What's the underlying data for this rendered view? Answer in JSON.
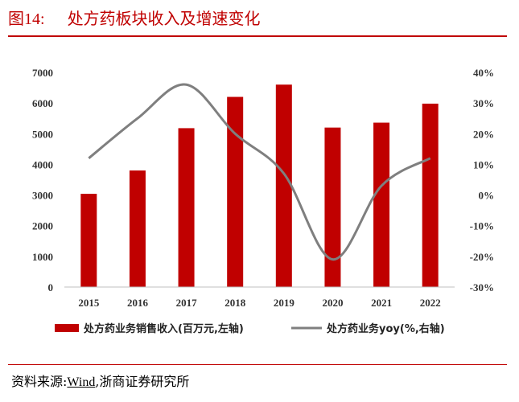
{
  "figure": {
    "number": "图14:",
    "title": "处方药板块收入及增速变化"
  },
  "source": {
    "label": "资料来源:",
    "wind": "Wind",
    "rest": ",浙商证券研究所"
  },
  "colors": {
    "bar": "#c00000",
    "line": "#7f7f7f",
    "rule": "#c00000"
  },
  "chart_data": {
    "type": "bar",
    "categories": [
      "2015",
      "2016",
      "2017",
      "2018",
      "2019",
      "2020",
      "2021",
      "2022"
    ],
    "series": [
      {
        "name": "处方药业务销售收入(百万元,左轴)",
        "type": "bar",
        "axis": "left",
        "values": [
          3040,
          3800,
          5180,
          6200,
          6600,
          5200,
          5360,
          5980
        ]
      },
      {
        "name": "处方药业务yoy(%,右轴)",
        "type": "line",
        "axis": "right",
        "smooth": true,
        "values": [
          12,
          25,
          36,
          20,
          7,
          -21,
          3,
          12
        ]
      }
    ],
    "ylim_left": [
      0,
      7000
    ],
    "ylim_right": [
      -30,
      40
    ],
    "yticks_left": [
      "0",
      "1000",
      "2000",
      "3000",
      "4000",
      "5000",
      "6000",
      "7000"
    ],
    "yticks_right": [
      "-30%",
      "-20%",
      "-10%",
      "0%",
      "10%",
      "20%",
      "30%",
      "40%"
    ],
    "grid": false,
    "legend_position": "bottom"
  }
}
